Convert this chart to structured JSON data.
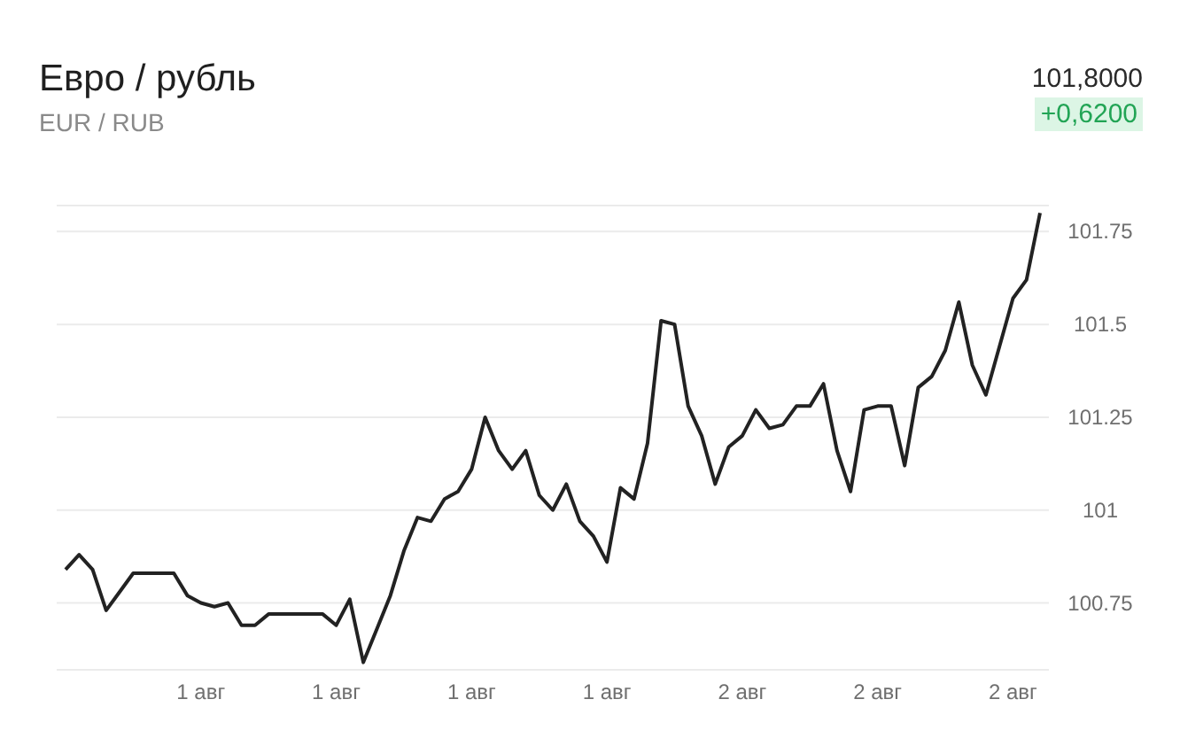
{
  "chart_data": {
    "type": "line",
    "title": "Евро / рубль",
    "subtitle": "EUR / RUB",
    "annotations": [
      "101,8000",
      "+0,6200"
    ],
    "categories": [
      null,
      null,
      null,
      null,
      null,
      null,
      null,
      null,
      null,
      null,
      "1 авг",
      null,
      null,
      null,
      null,
      null,
      null,
      null,
      null,
      null,
      "1 авг",
      null,
      null,
      null,
      null,
      null,
      null,
      null,
      null,
      null,
      "1 авг",
      null,
      null,
      null,
      null,
      null,
      null,
      null,
      null,
      null,
      "1 авг",
      null,
      null,
      null,
      null,
      null,
      null,
      null,
      null,
      null,
      "2 авг",
      null,
      null,
      null,
      null,
      null,
      null,
      null,
      null,
      null,
      "2 авг",
      null,
      null,
      null,
      null,
      null,
      null,
      null,
      null,
      null,
      "2 авг",
      null,
      null
    ],
    "series": [
      {
        "color": "#222222",
        "values": [
          100.84,
          100.88,
          100.84,
          100.73,
          100.78,
          100.83,
          100.83,
          100.83,
          100.83,
          100.77,
          100.75,
          100.74,
          100.75,
          100.69,
          100.69,
          100.72,
          100.72,
          100.72,
          100.72,
          100.72,
          100.69,
          100.76,
          100.59,
          100.68,
          100.77,
          100.89,
          100.98,
          100.97,
          101.03,
          101.05,
          101.11,
          101.25,
          101.16,
          101.11,
          101.16,
          101.04,
          101.0,
          101.07,
          100.97,
          100.93,
          100.86,
          101.06,
          101.03,
          101.18,
          101.51,
          101.5,
          101.28,
          101.2,
          101.07,
          101.17,
          101.2,
          101.27,
          101.22,
          101.23,
          101.28,
          101.28,
          101.34,
          101.16,
          101.05,
          101.27,
          101.28,
          101.28,
          101.12,
          101.33,
          101.36,
          101.43,
          101.56,
          101.39,
          101.31,
          101.44,
          101.57,
          101.62,
          101.8
        ]
      }
    ],
    "ylim": [
      100.57,
      101.82
    ],
    "yticks": [
      100.75,
      101,
      101.25,
      101.5,
      101.75
    ],
    "grid": "y",
    "marker": "none",
    "line_style": "solid"
  }
}
